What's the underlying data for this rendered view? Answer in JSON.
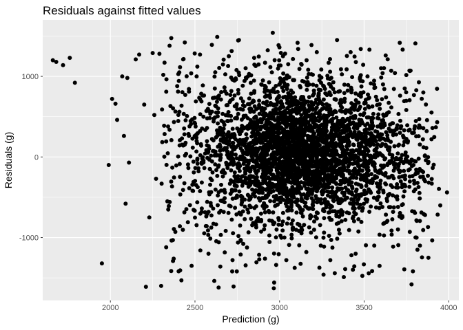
{
  "chart_data": {
    "type": "scatter",
    "title": "Residuals against fitted values",
    "xlabel": "Prediction (g)",
    "ylabel": "Residuals (g)",
    "xlim": [
      1600,
      4060
    ],
    "ylim": [
      -1780,
      1700
    ],
    "x_ticks": [
      2000,
      2500,
      3000,
      3500,
      4000
    ],
    "y_ticks": [
      -1000,
      0,
      1000
    ],
    "x_tick_labels": [
      "2000",
      "2500",
      "3000",
      "3500",
      "4000"
    ],
    "y_tick_labels": [
      "-1000",
      "0",
      "1000"
    ],
    "grid": true,
    "panel_color": "#ebebeb",
    "grid_color": "#ffffff",
    "point_color": "#000000",
    "points_note_estimated": false,
    "outliers": [
      [
        1660,
        1200
      ],
      [
        1680,
        1180
      ],
      [
        1720,
        1140
      ],
      [
        1760,
        1230
      ],
      [
        1790,
        920
      ],
      [
        1950,
        -1320
      ],
      [
        1990,
        -100
      ],
      [
        2010,
        720
      ],
      [
        2030,
        660
      ],
      [
        2040,
        460
      ],
      [
        2070,
        1000
      ],
      [
        2080,
        260
      ],
      [
        2090,
        -580
      ],
      [
        2100,
        980
      ],
      [
        2110,
        -70
      ],
      [
        2150,
        1210
      ],
      [
        2170,
        1270
      ],
      [
        2200,
        650
      ],
      [
        2210,
        -1610
      ],
      [
        2230,
        -750
      ],
      [
        2250,
        1290
      ],
      [
        2260,
        520
      ],
      [
        2270,
        -270
      ],
      [
        2290,
        1280
      ],
      [
        2300,
        -1600
      ],
      [
        2320,
        1170
      ],
      [
        2330,
        -1120
      ],
      [
        2350,
        1380
      ],
      [
        2370,
        -1290
      ],
      [
        2400,
        810
      ],
      [
        2420,
        -1530
      ],
      [
        2430,
        1210
      ],
      [
        2440,
        1420
      ],
      [
        2480,
        -1350
      ],
      [
        2510,
        1000
      ],
      [
        2530,
        1270
      ],
      [
        2580,
        -1200
      ],
      [
        2600,
        1390
      ],
      [
        2640,
        -1620
      ],
      [
        2650,
        -1360
      ],
      [
        2700,
        1250
      ],
      [
        2720,
        -1420
      ],
      [
        2760,
        1450
      ],
      [
        2770,
        -1210
      ],
      [
        2820,
        1030
      ],
      [
        2850,
        1230
      ],
      [
        2880,
        -1270
      ],
      [
        2960,
        1540
      ],
      [
        2980,
        -1340
      ],
      [
        3020,
        1250
      ],
      [
        3040,
        -1280
      ],
      [
        3110,
        1340
      ],
      [
        3160,
        1200
      ],
      [
        3220,
        1300
      ],
      [
        3260,
        -1460
      ],
      [
        3300,
        -1280
      ],
      [
        3340,
        1450
      ],
      [
        3380,
        -1490
      ],
      [
        3420,
        1300
      ],
      [
        3450,
        -1200
      ],
      [
        3480,
        1340
      ],
      [
        3520,
        1000
      ],
      [
        3560,
        -1100
      ],
      [
        3600,
        1100
      ],
      [
        3620,
        -820
      ],
      [
        3660,
        1070
      ],
      [
        3700,
        -900
      ],
      [
        3740,
        850
      ],
      [
        3770,
        -930
      ],
      [
        3780,
        -1580
      ],
      [
        3810,
        -1000
      ],
      [
        3830,
        -1100
      ],
      [
        3850,
        800
      ],
      [
        3860,
        -300
      ],
      [
        3880,
        -1250
      ],
      [
        3900,
        -330
      ],
      [
        3990,
        -440
      ],
      [
        3950,
        -600
      ]
    ],
    "clusters": [
      {
        "center": [
          3100,
          50
        ],
        "spread": [
          230,
          400
        ],
        "count": 1700
      },
      {
        "center": [
          3200,
          100
        ],
        "spread": [
          380,
          480
        ],
        "count": 1000
      },
      {
        "center": [
          2850,
          0
        ],
        "spread": [
          330,
          600
        ],
        "count": 380
      },
      {
        "center": [
          3400,
          0
        ],
        "spread": [
          300,
          600
        ],
        "count": 380
      },
      {
        "center": [
          2600,
          150
        ],
        "spread": [
          260,
          650
        ],
        "count": 120
      },
      {
        "center": [
          3650,
          -150
        ],
        "spread": [
          170,
          550
        ],
        "count": 90
      }
    ]
  }
}
